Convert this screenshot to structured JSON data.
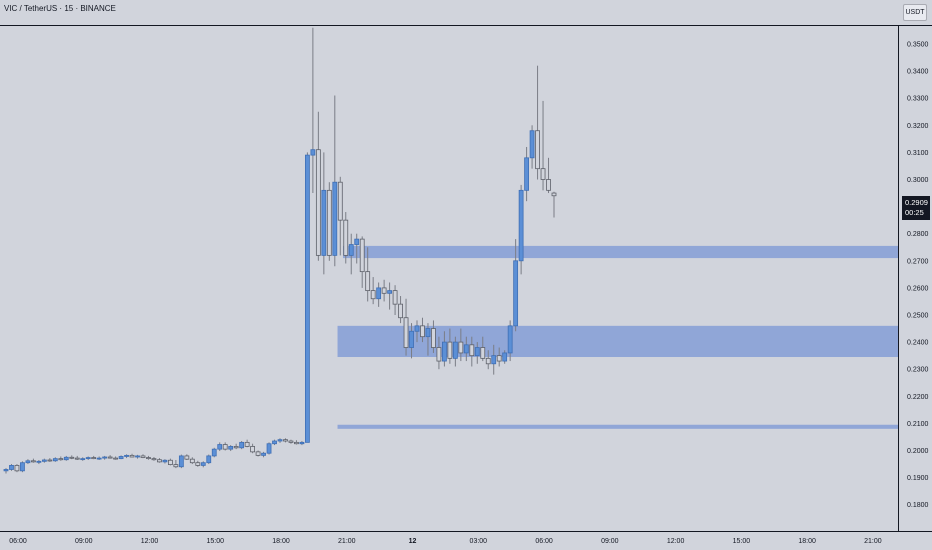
{
  "header": {
    "title": "VIC / TetherUS · 15 · BINANCE",
    "currency": "USDT"
  },
  "price_tag": {
    "price": "0.2909",
    "countdown": "00:25"
  },
  "colors": {
    "background": "#d1d4dc",
    "candle_up": "#5b8fd6",
    "candle_down": "#d1d4dc",
    "wick": "#7a7d86",
    "zone": "#5b7fd4",
    "axis_text": "#131722"
  },
  "chart_data": {
    "type": "candlestick",
    "y_axis": {
      "ticks": [
        "0.3500",
        "0.3400",
        "0.3300",
        "0.3200",
        "0.3100",
        "0.3000",
        "0.2800",
        "0.2700",
        "0.2600",
        "0.2500",
        "0.2400",
        "0.2300",
        "0.2200",
        "0.2100",
        "0.2000",
        "0.1900",
        "0.1800"
      ],
      "range": [
        0.174,
        0.357
      ]
    },
    "x_axis": {
      "ticks": [
        {
          "label": "06:00",
          "bar": 0
        },
        {
          "label": "09:00",
          "bar": 12
        },
        {
          "label": "12:00",
          "bar": 24
        },
        {
          "label": "15:00",
          "bar": 36
        },
        {
          "label": "18:00",
          "bar": 48
        },
        {
          "label": "21:00",
          "bar": 60
        },
        {
          "label": "12",
          "bar": 72
        },
        {
          "label": "03:00",
          "bar": 84
        },
        {
          "label": "06:00",
          "bar": 96
        },
        {
          "label": "09:00",
          "bar": 108
        },
        {
          "label": "12:00",
          "bar": 120
        },
        {
          "label": "15:00",
          "bar": 132
        },
        {
          "label": "18:00",
          "bar": 144
        },
        {
          "label": "21:00",
          "bar": 156
        }
      ]
    },
    "zones": [
      {
        "top": 0.2755,
        "bottom": 0.271,
        "from_bar": 61.5
      },
      {
        "top": 0.246,
        "bottom": 0.2345,
        "from_bar": 60.5
      },
      {
        "top": 0.2095,
        "bottom": 0.208,
        "from_bar": 60.5
      }
    ],
    "candles": [
      [
        0.1925,
        0.1935,
        0.1915,
        0.193
      ],
      [
        0.193,
        0.195,
        0.1925,
        0.1945
      ],
      [
        0.1945,
        0.195,
        0.192,
        0.1925
      ],
      [
        0.1925,
        0.196,
        0.192,
        0.1955
      ],
      [
        0.1955,
        0.1968,
        0.195,
        0.1962
      ],
      [
        0.1962,
        0.197,
        0.1955,
        0.1958
      ],
      [
        0.1958,
        0.1965,
        0.195,
        0.196
      ],
      [
        0.196,
        0.197,
        0.1955,
        0.1965
      ],
      [
        0.1965,
        0.1972,
        0.1958,
        0.1962
      ],
      [
        0.1962,
        0.1975,
        0.1958,
        0.197
      ],
      [
        0.197,
        0.1978,
        0.1962,
        0.1966
      ],
      [
        0.1966,
        0.198,
        0.1962,
        0.1975
      ],
      [
        0.1975,
        0.1982,
        0.1968,
        0.1972
      ],
      [
        0.1972,
        0.198,
        0.1965,
        0.1968
      ],
      [
        0.1968,
        0.1975,
        0.1962,
        0.197
      ],
      [
        0.197,
        0.1978,
        0.1965,
        0.1974
      ],
      [
        0.1974,
        0.198,
        0.1968,
        0.197
      ],
      [
        0.197,
        0.1978,
        0.1965,
        0.1972
      ],
      [
        0.1972,
        0.198,
        0.1966,
        0.1976
      ],
      [
        0.1976,
        0.1983,
        0.197,
        0.1972
      ],
      [
        0.1972,
        0.1978,
        0.1966,
        0.197
      ],
      [
        0.197,
        0.1982,
        0.1968,
        0.1978
      ],
      [
        0.1978,
        0.1986,
        0.1972,
        0.1982
      ],
      [
        0.1982,
        0.1988,
        0.1975,
        0.1976
      ],
      [
        0.1976,
        0.1984,
        0.197,
        0.198
      ],
      [
        0.198,
        0.1986,
        0.1972,
        0.1974
      ],
      [
        0.1974,
        0.198,
        0.1966,
        0.197
      ],
      [
        0.197,
        0.1976,
        0.1962,
        0.1966
      ],
      [
        0.1966,
        0.1972,
        0.1955,
        0.1958
      ],
      [
        0.1958,
        0.1968,
        0.1952,
        0.1964
      ],
      [
        0.1964,
        0.197,
        0.1945,
        0.1948
      ],
      [
        0.1948,
        0.1965,
        0.1935,
        0.194
      ],
      [
        0.194,
        0.1985,
        0.1935,
        0.198
      ],
      [
        0.198,
        0.1986,
        0.1965,
        0.1968
      ],
      [
        0.1968,
        0.1975,
        0.195,
        0.1955
      ],
      [
        0.1955,
        0.1962,
        0.194,
        0.1945
      ],
      [
        0.1945,
        0.196,
        0.1938,
        0.1955
      ],
      [
        0.1955,
        0.1985,
        0.195,
        0.198
      ],
      [
        0.198,
        0.201,
        0.1975,
        0.2005
      ],
      [
        0.2005,
        0.203,
        0.1998,
        0.2022
      ],
      [
        0.2022,
        0.203,
        0.2,
        0.2005
      ],
      [
        0.2005,
        0.202,
        0.1998,
        0.2015
      ],
      [
        0.2015,
        0.2025,
        0.2005,
        0.201
      ],
      [
        0.201,
        0.2035,
        0.2005,
        0.203
      ],
      [
        0.203,
        0.204,
        0.2012,
        0.2015
      ],
      [
        0.2015,
        0.2025,
        0.199,
        0.1995
      ],
      [
        0.1995,
        0.2,
        0.1978,
        0.1982
      ],
      [
        0.1982,
        0.1995,
        0.1975,
        0.199
      ],
      [
        0.199,
        0.203,
        0.1985,
        0.2025
      ],
      [
        0.2025,
        0.204,
        0.202,
        0.2035
      ],
      [
        0.2035,
        0.2045,
        0.2028,
        0.204
      ],
      [
        0.204,
        0.2045,
        0.203,
        0.2035
      ],
      [
        0.2035,
        0.204,
        0.2025,
        0.203
      ],
      [
        0.203,
        0.2038,
        0.2022,
        0.2025
      ],
      [
        0.2025,
        0.2035,
        0.202,
        0.203
      ],
      [
        0.203,
        0.31,
        0.203,
        0.309
      ],
      [
        0.309,
        0.356,
        0.295,
        0.311
      ],
      [
        0.311,
        0.325,
        0.27,
        0.272
      ],
      [
        0.272,
        0.31,
        0.265,
        0.296
      ],
      [
        0.296,
        0.299,
        0.27,
        0.272
      ],
      [
        0.272,
        0.331,
        0.268,
        0.299
      ],
      [
        0.299,
        0.301,
        0.272,
        0.285
      ],
      [
        0.285,
        0.288,
        0.269,
        0.272
      ],
      [
        0.272,
        0.28,
        0.265,
        0.276
      ],
      [
        0.276,
        0.28,
        0.269,
        0.278
      ],
      [
        0.278,
        0.279,
        0.26,
        0.266
      ],
      [
        0.266,
        0.275,
        0.255,
        0.259
      ],
      [
        0.259,
        0.264,
        0.254,
        0.256
      ],
      [
        0.256,
        0.262,
        0.253,
        0.26
      ],
      [
        0.26,
        0.263,
        0.255,
        0.258
      ],
      [
        0.258,
        0.262,
        0.252,
        0.259
      ],
      [
        0.259,
        0.261,
        0.25,
        0.254
      ],
      [
        0.254,
        0.257,
        0.247,
        0.249
      ],
      [
        0.249,
        0.256,
        0.235,
        0.238
      ],
      [
        0.238,
        0.247,
        0.234,
        0.244
      ],
      [
        0.244,
        0.248,
        0.24,
        0.246
      ],
      [
        0.246,
        0.249,
        0.24,
        0.242
      ],
      [
        0.242,
        0.247,
        0.235,
        0.245
      ],
      [
        0.245,
        0.248,
        0.236,
        0.238
      ],
      [
        0.238,
        0.242,
        0.23,
        0.233
      ],
      [
        0.233,
        0.244,
        0.231,
        0.24
      ],
      [
        0.24,
        0.245,
        0.232,
        0.234
      ],
      [
        0.234,
        0.242,
        0.231,
        0.24
      ],
      [
        0.24,
        0.245,
        0.233,
        0.236
      ],
      [
        0.236,
        0.242,
        0.233,
        0.239
      ],
      [
        0.239,
        0.242,
        0.231,
        0.235
      ],
      [
        0.235,
        0.24,
        0.232,
        0.238
      ],
      [
        0.238,
        0.242,
        0.233,
        0.234
      ],
      [
        0.234,
        0.237,
        0.23,
        0.232
      ],
      [
        0.232,
        0.239,
        0.228,
        0.235
      ],
      [
        0.235,
        0.238,
        0.231,
        0.233
      ],
      [
        0.233,
        0.237,
        0.232,
        0.236
      ],
      [
        0.236,
        0.248,
        0.233,
        0.246
      ],
      [
        0.246,
        0.278,
        0.244,
        0.27
      ],
      [
        0.27,
        0.298,
        0.265,
        0.296
      ],
      [
        0.296,
        0.312,
        0.292,
        0.308
      ],
      [
        0.308,
        0.32,
        0.304,
        0.318
      ],
      [
        0.318,
        0.342,
        0.3,
        0.304
      ],
      [
        0.304,
        0.329,
        0.296,
        0.3
      ],
      [
        0.3,
        0.308,
        0.295,
        0.296
      ],
      [
        0.295,
        0.2955,
        0.286,
        0.294
      ]
    ]
  }
}
